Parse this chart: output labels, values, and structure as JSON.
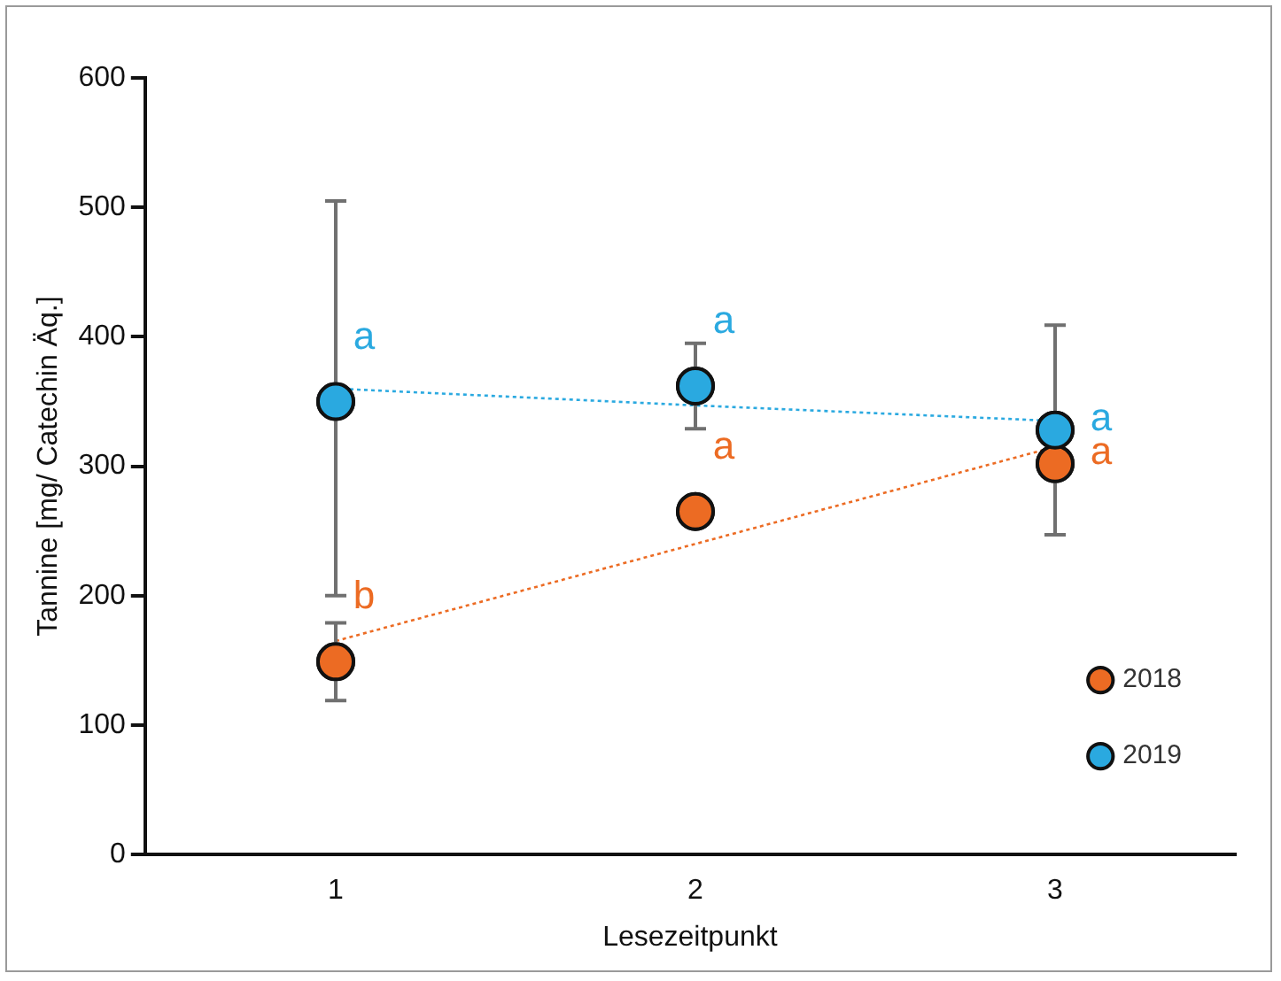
{
  "chart_data": {
    "type": "scatter",
    "xlabel": "Lesezeitpunkt",
    "ylabel": "Tannine [mg/ Catechin Äq.]",
    "x": [
      1,
      2,
      3
    ],
    "series": [
      {
        "name": "2018",
        "color": "#ec6b23",
        "values": [
          149,
          265,
          302
        ],
        "errors": [
          30,
          null,
          null
        ]
      },
      {
        "name": "2019",
        "color": "#2aa9e0",
        "values": [
          350,
          362,
          328
        ],
        "errors": [
          [
            200,
            505
          ],
          33,
          81
        ]
      },
      {
        "type": "line",
        "color": "#ec6b23",
        "values": [
          165,
          240,
          315
        ],
        "line_style": "dotted",
        "marker": "none"
      },
      {
        "type": "line",
        "color": "#2aa9e0",
        "values": [
          360,
          347,
          335
        ],
        "line_style": "dotted",
        "marker": "none"
      }
    ],
    "xlim": [
      0.47,
      3.5
    ],
    "xticks": [
      1,
      2,
      3
    ],
    "ylim": [
      0,
      600
    ],
    "yticks": [
      0,
      100,
      200,
      300,
      400,
      500,
      600
    ],
    "grid": false,
    "legend": "bottom right",
    "marker": "circle",
    "annotations": [
      {
        "text": "a",
        "x": 1,
        "y": 350
      },
      {
        "text": "b",
        "x": 1,
        "y": 149
      },
      {
        "text": "a",
        "x": 2,
        "y": 362
      },
      {
        "text": "a",
        "x": 2,
        "y": 265
      },
      {
        "text": "a",
        "x": 3,
        "y": 328
      },
      {
        "text": "a",
        "x": 3,
        "y": 302
      }
    ]
  }
}
